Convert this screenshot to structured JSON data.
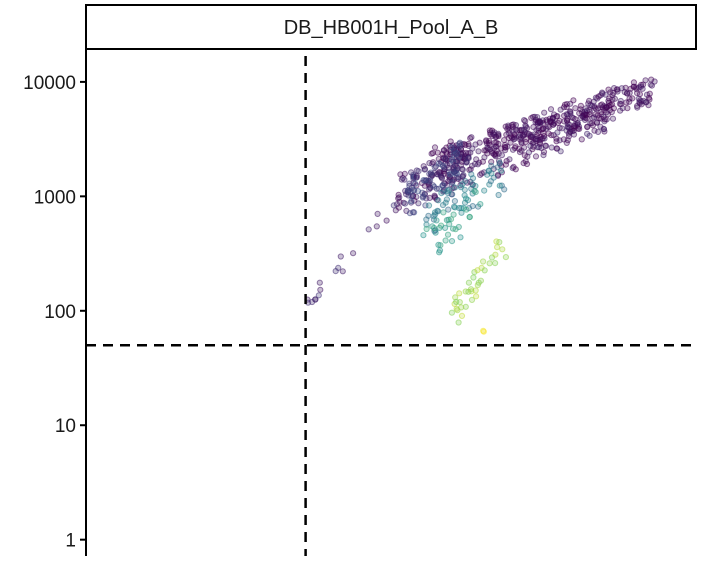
{
  "chart_data": {
    "type": "scatter",
    "facet_title": "DB_HB001H_Pool_A_B",
    "title": "",
    "xlabel": "",
    "ylabel": "",
    "y_scale": "log10",
    "ylim": [
      0.72,
      19000
    ],
    "y_ticks": [
      {
        "value": 1,
        "label": "1"
      },
      {
        "value": 10,
        "label": "10"
      },
      {
        "value": 100,
        "label": "100"
      },
      {
        "value": 1000,
        "label": "1000"
      },
      {
        "value": 10000,
        "label": "10000"
      }
    ],
    "x_ticks": [],
    "x_axis_shown": false,
    "grid": false,
    "legend": "none",
    "point_alpha": 0.28,
    "colormap": "viridis",
    "reference_lines": [
      {
        "orientation": "horizontal",
        "y": 50,
        "style": "dashed"
      },
      {
        "orientation": "vertical",
        "x_fraction": 0.36,
        "style": "dashed"
      }
    ],
    "color_scale": [
      "#440154",
      "#3b528b",
      "#21918c",
      "#5ec962",
      "#fde725"
    ],
    "points_note": "",
    "clusters": [
      {
        "x_from": 0.512,
        "x_to": 0.86,
        "y_from": 1050,
        "y_to": 5600,
        "n": 260,
        "color": 0.05,
        "spread": 0.35
      },
      {
        "x_from": 0.56,
        "x_to": 0.93,
        "y_from": 1900,
        "y_to": 8500,
        "n": 320,
        "color": 0.03,
        "spread": 0.25
      },
      {
        "x_from": 0.52,
        "x_to": 0.62,
        "y_from": 900,
        "y_to": 2200,
        "n": 90,
        "color": 0.18,
        "spread": 0.35
      },
      {
        "x_from": 0.56,
        "x_to": 0.68,
        "y_from": 650,
        "y_to": 1500,
        "n": 60,
        "color": 0.4,
        "spread": 0.3
      },
      {
        "x_from": 0.56,
        "x_to": 0.64,
        "y_from": 350,
        "y_to": 900,
        "n": 35,
        "color": 0.55,
        "spread": 0.3
      },
      {
        "x_from": 0.6,
        "x_to": 0.69,
        "y_from": 90,
        "y_to": 420,
        "n": 38,
        "color": 0.85,
        "spread": 0.2
      },
      {
        "x_from": 0.64,
        "x_to": 0.66,
        "y_from": 55,
        "y_to": 70,
        "n": 2,
        "color": 0.95,
        "spread": 0.1
      },
      {
        "x_from": 0.36,
        "x_to": 0.55,
        "y_from": 110,
        "y_to": 1500,
        "n": 22,
        "color": 0.1,
        "spread": 0.15
      }
    ]
  }
}
